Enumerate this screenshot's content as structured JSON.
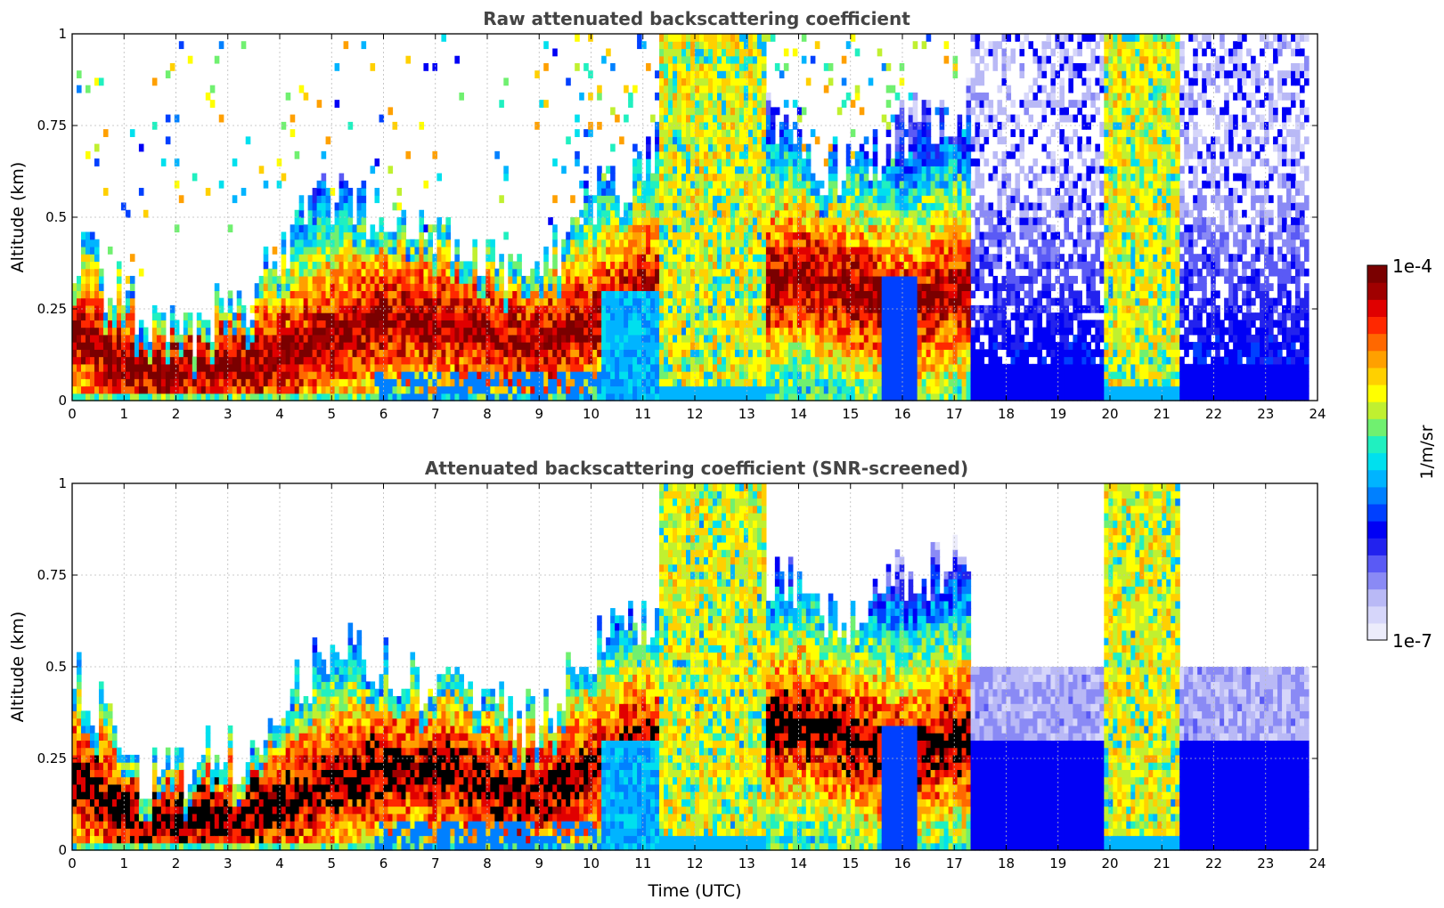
{
  "colors": {
    "colormap": [
      "#ececfb",
      "#d6d6fa",
      "#b9b9f6",
      "#8a8af5",
      "#5a5af5",
      "#2222ee",
      "#0000f5",
      "#0040ff",
      "#0080ff",
      "#00b4ff",
      "#00e0ee",
      "#20f0c0",
      "#70f070",
      "#c0f030",
      "#ffff00",
      "#ffd000",
      "#ffa000",
      "#ff6800",
      "#ff2800",
      "#e00000",
      "#a00000",
      "#7a0000"
    ],
    "grid": "#bbbbbb",
    "title": "#444444",
    "mask": "#000000"
  },
  "chart_data": [
    {
      "type": "heatmap",
      "title": "Raw attenuated backscattering coefficient",
      "xlabel": "",
      "ylabel": "Altitude (km)",
      "xlim": [
        0,
        24
      ],
      "ylim": [
        0,
        1
      ],
      "x_ticks": [
        "0",
        "1",
        "2",
        "3",
        "4",
        "5",
        "6",
        "7",
        "8",
        "9",
        "10",
        "11",
        "12",
        "13",
        "14",
        "15",
        "16",
        "17",
        "18",
        "19",
        "20",
        "21",
        "22",
        "23",
        "24"
      ],
      "y_ticks": [
        "0",
        "0.25",
        "0.5",
        "0.75",
        "1"
      ],
      "grid": true,
      "z_scale": "log",
      "z_range": [
        "1e-7",
        "1e-4"
      ],
      "screened": false,
      "features": {
        "boundary_layer_top_km": [
          [
            0,
            0.42
          ],
          [
            1,
            0.28
          ],
          [
            1.5,
            0.18
          ],
          [
            2.5,
            0.22
          ],
          [
            3.5,
            0.25
          ],
          [
            4,
            0.42
          ],
          [
            5,
            0.55
          ],
          [
            6,
            0.5
          ],
          [
            7,
            0.45
          ],
          [
            8,
            0.38
          ],
          [
            9,
            0.35
          ],
          [
            10,
            0.55
          ],
          [
            11,
            0.6
          ],
          [
            12,
            0.85
          ],
          [
            13,
            0.8
          ],
          [
            14,
            0.7
          ],
          [
            15,
            0.6
          ],
          [
            16,
            0.75
          ],
          [
            17,
            0.8
          ]
        ],
        "boundary_layer_core_km": [
          [
            0,
            0.2
          ],
          [
            1,
            0.1
          ],
          [
            2,
            0.08
          ],
          [
            3,
            0.1
          ],
          [
            4,
            0.12
          ],
          [
            5,
            0.18
          ],
          [
            6,
            0.22
          ],
          [
            7,
            0.22
          ],
          [
            8,
            0.18
          ],
          [
            9,
            0.15
          ],
          [
            10,
            0.22
          ],
          [
            11,
            0.3
          ],
          [
            12,
            0.25
          ],
          [
            13,
            0.3
          ],
          [
            14,
            0.35
          ],
          [
            15,
            0.3
          ],
          [
            16,
            0.25
          ],
          [
            17,
            0.3
          ]
        ],
        "thick_cloud_intervals_utc": [
          [
            11.35,
            13.4
          ],
          [
            19.85,
            21.3
          ]
        ],
        "clear_sky_interval_utc": [
          17.3,
          23.8
        ],
        "data_end_utc": 23.8
      }
    },
    {
      "type": "heatmap",
      "title": "Attenuated backscattering coefficient (SNR-screened)",
      "xlabel": "Time (UTC)",
      "ylabel": "Altitude (km)",
      "xlim": [
        0,
        24
      ],
      "ylim": [
        0,
        1
      ],
      "x_ticks": [
        "0",
        "1",
        "2",
        "3",
        "4",
        "5",
        "6",
        "7",
        "8",
        "9",
        "10",
        "11",
        "12",
        "13",
        "14",
        "15",
        "16",
        "17",
        "18",
        "19",
        "20",
        "21",
        "22",
        "23",
        "24"
      ],
      "y_ticks": [
        "0",
        "0.25",
        "0.5",
        "0.75",
        "1"
      ],
      "grid": true,
      "z_scale": "log",
      "z_range": [
        "1e-7",
        "1e-4"
      ],
      "screened": true,
      "features": {
        "boundary_layer_top_km": [
          [
            0,
            0.5
          ],
          [
            1,
            0.3
          ],
          [
            1.5,
            0.18
          ],
          [
            2.5,
            0.25
          ],
          [
            3.5,
            0.25
          ],
          [
            4,
            0.4
          ],
          [
            5,
            0.55
          ],
          [
            6,
            0.5
          ],
          [
            7,
            0.45
          ],
          [
            8,
            0.4
          ],
          [
            9,
            0.35
          ],
          [
            10,
            0.55
          ],
          [
            11,
            0.6
          ],
          [
            12,
            0.85
          ],
          [
            13,
            0.8
          ],
          [
            14,
            0.7
          ],
          [
            15,
            0.6
          ],
          [
            16,
            0.75
          ],
          [
            17,
            0.8
          ]
        ],
        "boundary_layer_core_km": [
          [
            0,
            0.2
          ],
          [
            1,
            0.1
          ],
          [
            2,
            0.08
          ],
          [
            3,
            0.1
          ],
          [
            4,
            0.12
          ],
          [
            5,
            0.18
          ],
          [
            6,
            0.22
          ],
          [
            7,
            0.22
          ],
          [
            8,
            0.18
          ],
          [
            9,
            0.15
          ],
          [
            10,
            0.22
          ],
          [
            11,
            0.3
          ],
          [
            12,
            0.25
          ],
          [
            13,
            0.3
          ],
          [
            14,
            0.35
          ],
          [
            15,
            0.3
          ],
          [
            16,
            0.25
          ],
          [
            17,
            0.3
          ]
        ],
        "thick_cloud_intervals_utc": [
          [
            11.35,
            13.4
          ],
          [
            19.85,
            21.3
          ]
        ],
        "clear_sky_interval_utc": [
          17.3,
          23.8
        ],
        "data_end_utc": 23.8
      }
    }
  ],
  "colorbar": {
    "min_label": "1e-7",
    "max_label": "1e-4",
    "unit_label": "1/m/sr"
  }
}
